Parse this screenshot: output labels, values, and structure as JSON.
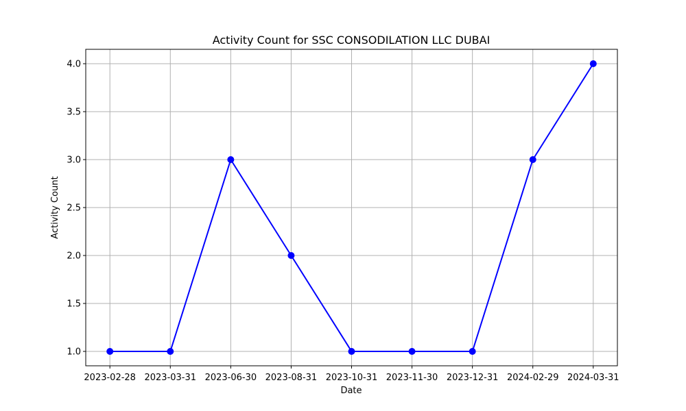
{
  "chart_data": {
    "type": "line",
    "title": "Activity Count for SSC CONSODILATION LLC DUBAI",
    "xlabel": "Date",
    "ylabel": "Activity Count",
    "categories": [
      "2023-02-28",
      "2023-03-31",
      "2023-06-30",
      "2023-08-31",
      "2023-10-31",
      "2023-11-30",
      "2023-12-31",
      "2024-02-29",
      "2024-03-31"
    ],
    "series": [
      {
        "values": [
          1,
          1,
          3,
          2,
          1,
          1,
          1,
          3,
          4
        ],
        "color": "#0000ff",
        "marker": "circle"
      }
    ],
    "ylim": [
      0.85,
      4.15
    ],
    "yticks": [
      "1.0",
      "1.5",
      "2.0",
      "2.5",
      "3.0",
      "3.5",
      "4.0"
    ],
    "grid": true
  }
}
